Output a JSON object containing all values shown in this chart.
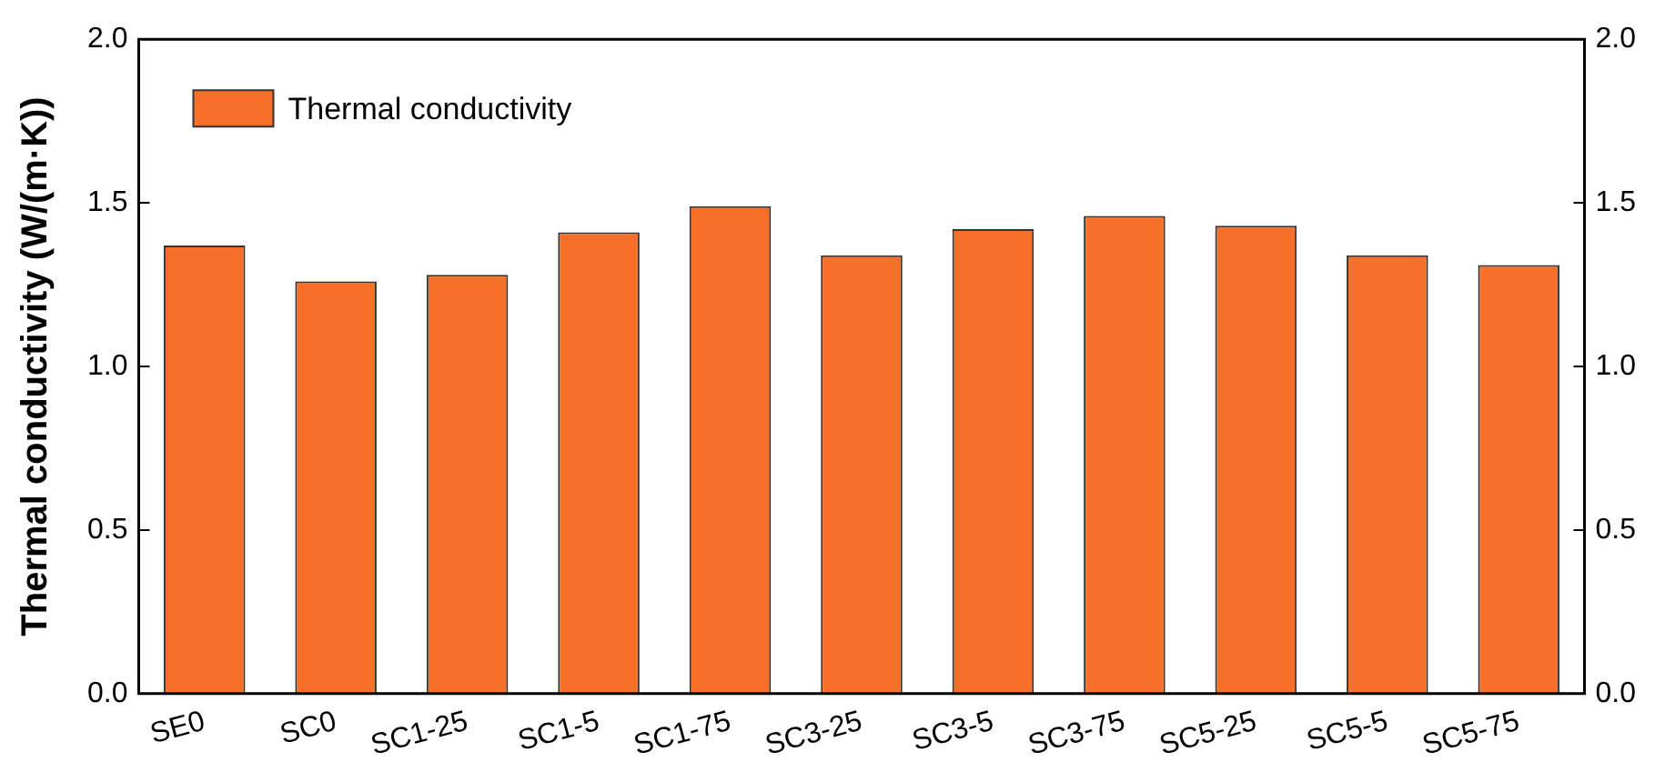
{
  "chart_data": {
    "type": "bar",
    "ylabel": "Thermal conductivity (W/(m·K))",
    "categories": [
      "SE0",
      "SC0",
      "SC1-25",
      "SC1-5",
      "SC1-75",
      "SC3-25",
      "SC3-5",
      "SC3-75",
      "SC5-25",
      "SC5-5",
      "SC5-75"
    ],
    "series": [
      {
        "name": "Thermal conductivity",
        "color": "#f7702a",
        "values": [
          1.37,
          1.26,
          1.28,
          1.41,
          1.49,
          1.34,
          1.42,
          1.46,
          1.43,
          1.34,
          1.31
        ]
      }
    ],
    "ylim": [
      0,
      2
    ],
    "yticks": [
      {
        "value": 0,
        "label": "0.0"
      },
      {
        "value": 0.5,
        "label": "0.5"
      },
      {
        "value": 1,
        "label": "1.0"
      },
      {
        "value": 1.5,
        "label": "1.5"
      },
      {
        "value": 2,
        "label": "2.0"
      }
    ],
    "y2lim": [
      0,
      2
    ],
    "y2ticks": [
      {
        "value": 0,
        "label": "0.0"
      },
      {
        "value": 0.5,
        "label": "0.5"
      },
      {
        "value": 1,
        "label": "1.0"
      },
      {
        "value": 1.5,
        "label": "1.5"
      },
      {
        "value": 2,
        "label": "2.0"
      }
    ],
    "grid": false,
    "legend": "top left"
  }
}
